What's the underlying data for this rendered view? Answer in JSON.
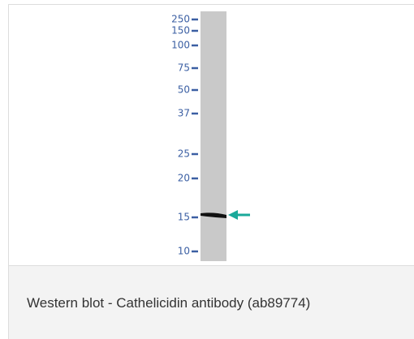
{
  "figure": {
    "markers": [
      "250",
      "150",
      "100",
      "75",
      "50",
      "37",
      "25",
      "20",
      "15",
      "10"
    ]
  },
  "caption": "Western blot - Cathelicidin antibody (ab89774)"
}
